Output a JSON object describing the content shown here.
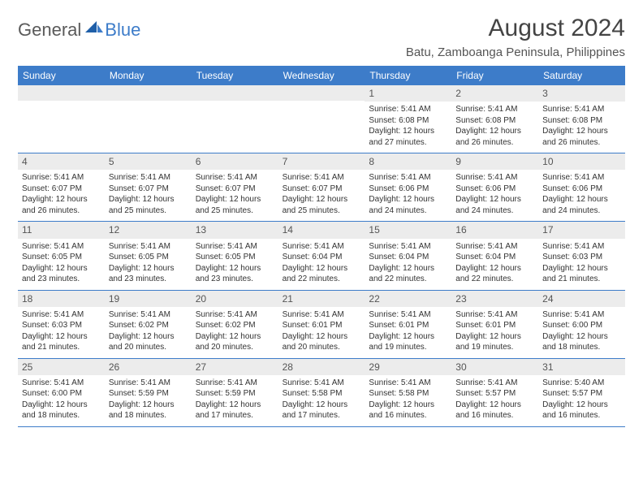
{
  "logo": {
    "text1": "General",
    "text2": "Blue"
  },
  "title": "August 2024",
  "location": "Batu, Zamboanga Peninsula, Philippines",
  "colors": {
    "header_bg": "#3d7cc9",
    "header_text": "#ffffff",
    "daynum_bg": "#ececec",
    "border": "#3d7cc9",
    "body_text": "#333333"
  },
  "weekdays": [
    "Sunday",
    "Monday",
    "Tuesday",
    "Wednesday",
    "Thursday",
    "Friday",
    "Saturday"
  ],
  "weeks": [
    [
      {
        "n": "",
        "sr": "",
        "ss": "",
        "dl": ""
      },
      {
        "n": "",
        "sr": "",
        "ss": "",
        "dl": ""
      },
      {
        "n": "",
        "sr": "",
        "ss": "",
        "dl": ""
      },
      {
        "n": "",
        "sr": "",
        "ss": "",
        "dl": ""
      },
      {
        "n": "1",
        "sr": "Sunrise: 5:41 AM",
        "ss": "Sunset: 6:08 PM",
        "dl": "Daylight: 12 hours and 27 minutes."
      },
      {
        "n": "2",
        "sr": "Sunrise: 5:41 AM",
        "ss": "Sunset: 6:08 PM",
        "dl": "Daylight: 12 hours and 26 minutes."
      },
      {
        "n": "3",
        "sr": "Sunrise: 5:41 AM",
        "ss": "Sunset: 6:08 PM",
        "dl": "Daylight: 12 hours and 26 minutes."
      }
    ],
    [
      {
        "n": "4",
        "sr": "Sunrise: 5:41 AM",
        "ss": "Sunset: 6:07 PM",
        "dl": "Daylight: 12 hours and 26 minutes."
      },
      {
        "n": "5",
        "sr": "Sunrise: 5:41 AM",
        "ss": "Sunset: 6:07 PM",
        "dl": "Daylight: 12 hours and 25 minutes."
      },
      {
        "n": "6",
        "sr": "Sunrise: 5:41 AM",
        "ss": "Sunset: 6:07 PM",
        "dl": "Daylight: 12 hours and 25 minutes."
      },
      {
        "n": "7",
        "sr": "Sunrise: 5:41 AM",
        "ss": "Sunset: 6:07 PM",
        "dl": "Daylight: 12 hours and 25 minutes."
      },
      {
        "n": "8",
        "sr": "Sunrise: 5:41 AM",
        "ss": "Sunset: 6:06 PM",
        "dl": "Daylight: 12 hours and 24 minutes."
      },
      {
        "n": "9",
        "sr": "Sunrise: 5:41 AM",
        "ss": "Sunset: 6:06 PM",
        "dl": "Daylight: 12 hours and 24 minutes."
      },
      {
        "n": "10",
        "sr": "Sunrise: 5:41 AM",
        "ss": "Sunset: 6:06 PM",
        "dl": "Daylight: 12 hours and 24 minutes."
      }
    ],
    [
      {
        "n": "11",
        "sr": "Sunrise: 5:41 AM",
        "ss": "Sunset: 6:05 PM",
        "dl": "Daylight: 12 hours and 23 minutes."
      },
      {
        "n": "12",
        "sr": "Sunrise: 5:41 AM",
        "ss": "Sunset: 6:05 PM",
        "dl": "Daylight: 12 hours and 23 minutes."
      },
      {
        "n": "13",
        "sr": "Sunrise: 5:41 AM",
        "ss": "Sunset: 6:05 PM",
        "dl": "Daylight: 12 hours and 23 minutes."
      },
      {
        "n": "14",
        "sr": "Sunrise: 5:41 AM",
        "ss": "Sunset: 6:04 PM",
        "dl": "Daylight: 12 hours and 22 minutes."
      },
      {
        "n": "15",
        "sr": "Sunrise: 5:41 AM",
        "ss": "Sunset: 6:04 PM",
        "dl": "Daylight: 12 hours and 22 minutes."
      },
      {
        "n": "16",
        "sr": "Sunrise: 5:41 AM",
        "ss": "Sunset: 6:04 PM",
        "dl": "Daylight: 12 hours and 22 minutes."
      },
      {
        "n": "17",
        "sr": "Sunrise: 5:41 AM",
        "ss": "Sunset: 6:03 PM",
        "dl": "Daylight: 12 hours and 21 minutes."
      }
    ],
    [
      {
        "n": "18",
        "sr": "Sunrise: 5:41 AM",
        "ss": "Sunset: 6:03 PM",
        "dl": "Daylight: 12 hours and 21 minutes."
      },
      {
        "n": "19",
        "sr": "Sunrise: 5:41 AM",
        "ss": "Sunset: 6:02 PM",
        "dl": "Daylight: 12 hours and 20 minutes."
      },
      {
        "n": "20",
        "sr": "Sunrise: 5:41 AM",
        "ss": "Sunset: 6:02 PM",
        "dl": "Daylight: 12 hours and 20 minutes."
      },
      {
        "n": "21",
        "sr": "Sunrise: 5:41 AM",
        "ss": "Sunset: 6:01 PM",
        "dl": "Daylight: 12 hours and 20 minutes."
      },
      {
        "n": "22",
        "sr": "Sunrise: 5:41 AM",
        "ss": "Sunset: 6:01 PM",
        "dl": "Daylight: 12 hours and 19 minutes."
      },
      {
        "n": "23",
        "sr": "Sunrise: 5:41 AM",
        "ss": "Sunset: 6:01 PM",
        "dl": "Daylight: 12 hours and 19 minutes."
      },
      {
        "n": "24",
        "sr": "Sunrise: 5:41 AM",
        "ss": "Sunset: 6:00 PM",
        "dl": "Daylight: 12 hours and 18 minutes."
      }
    ],
    [
      {
        "n": "25",
        "sr": "Sunrise: 5:41 AM",
        "ss": "Sunset: 6:00 PM",
        "dl": "Daylight: 12 hours and 18 minutes."
      },
      {
        "n": "26",
        "sr": "Sunrise: 5:41 AM",
        "ss": "Sunset: 5:59 PM",
        "dl": "Daylight: 12 hours and 18 minutes."
      },
      {
        "n": "27",
        "sr": "Sunrise: 5:41 AM",
        "ss": "Sunset: 5:59 PM",
        "dl": "Daylight: 12 hours and 17 minutes."
      },
      {
        "n": "28",
        "sr": "Sunrise: 5:41 AM",
        "ss": "Sunset: 5:58 PM",
        "dl": "Daylight: 12 hours and 17 minutes."
      },
      {
        "n": "29",
        "sr": "Sunrise: 5:41 AM",
        "ss": "Sunset: 5:58 PM",
        "dl": "Daylight: 12 hours and 16 minutes."
      },
      {
        "n": "30",
        "sr": "Sunrise: 5:41 AM",
        "ss": "Sunset: 5:57 PM",
        "dl": "Daylight: 12 hours and 16 minutes."
      },
      {
        "n": "31",
        "sr": "Sunrise: 5:40 AM",
        "ss": "Sunset: 5:57 PM",
        "dl": "Daylight: 12 hours and 16 minutes."
      }
    ]
  ]
}
